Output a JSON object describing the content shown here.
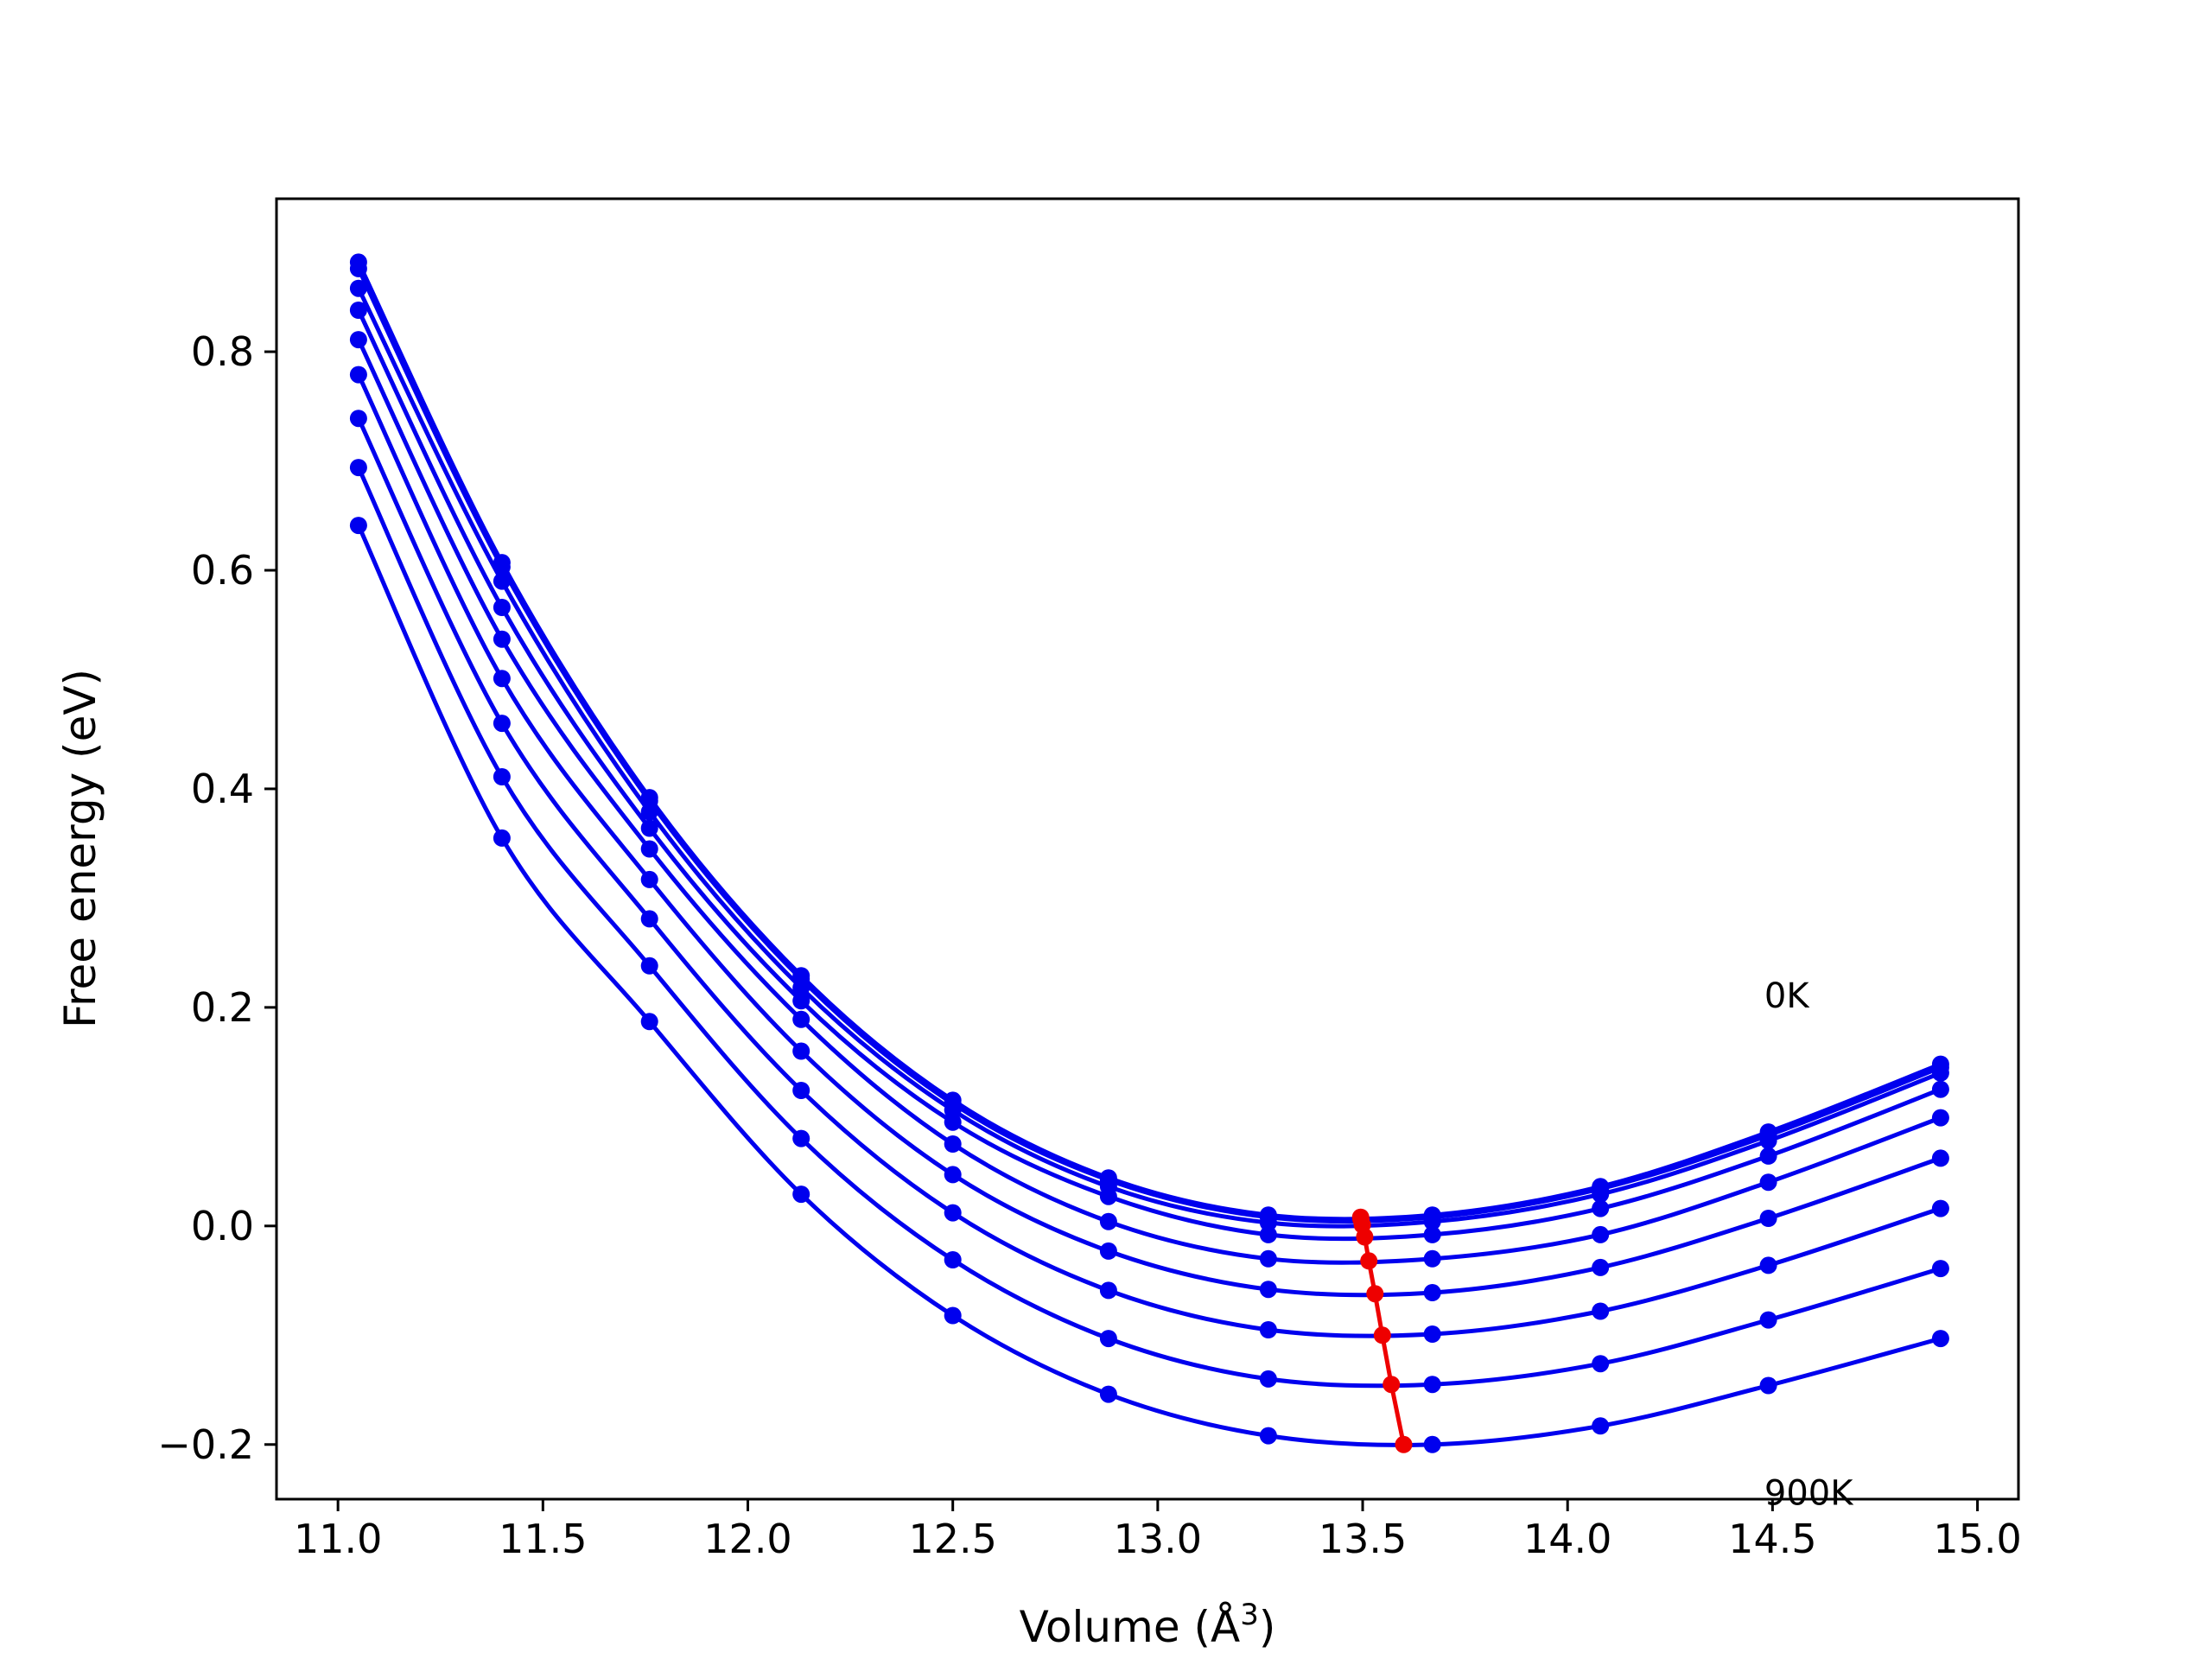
{
  "chart_data": {
    "type": "line",
    "title": "",
    "xlabel": "Volume (Å",
    "xlabel_sup": "3",
    "xlabel_close": ")",
    "ylabel": "Free energy (eV)",
    "xlim": [
      10.85,
      15.1
    ],
    "ylim": [
      -0.25,
      0.94
    ],
    "xticks": [
      11.0,
      11.5,
      12.0,
      12.5,
      13.0,
      13.5,
      14.0,
      14.5,
      15.0
    ],
    "xtick_labels": [
      "11.0",
      "11.5",
      "12.0",
      "12.5",
      "13.0",
      "13.5",
      "14.0",
      "14.5",
      "15.0"
    ],
    "yticks": [
      -0.2,
      0.0,
      0.2,
      0.4,
      0.6,
      0.8
    ],
    "ytick_labels": [
      "−0.2",
      "0.0",
      "0.2",
      "0.4",
      "0.6",
      "0.8"
    ],
    "grid": false,
    "curve_color": "#0000ee",
    "min_color": "#ee0000",
    "annotations": [
      {
        "text": "0K",
        "x": 14.48,
        "y": 0.2
      },
      {
        "text": "900K",
        "x": 14.48,
        "y": -0.255
      }
    ],
    "x": [
      11.05,
      11.4,
      11.76,
      12.13,
      12.5,
      12.88,
      13.27,
      13.67,
      14.08,
      14.49,
      14.91
    ],
    "series": [
      {
        "values": [
          0.882,
          0.607,
          0.392,
          0.229,
          0.115,
          0.044,
          0.01,
          0.01,
          0.036,
          0.086,
          0.148
        ]
      },
      {
        "values": [
          0.876,
          0.603,
          0.389,
          0.226,
          0.112,
          0.042,
          0.008,
          0.008,
          0.034,
          0.083,
          0.145
        ]
      },
      {
        "values": [
          0.858,
          0.59,
          0.379,
          0.218,
          0.106,
          0.036,
          0.003,
          0.004,
          0.029,
          0.078,
          0.14
        ]
      },
      {
        "values": [
          0.838,
          0.566,
          0.364,
          0.206,
          0.095,
          0.027,
          -0.008,
          -0.008,
          0.016,
          0.064,
          0.125
        ]
      },
      {
        "values": [
          0.811,
          0.537,
          0.345,
          0.189,
          0.075,
          0.004,
          -0.03,
          -0.03,
          -0.008,
          0.04,
          0.099
        ]
      },
      {
        "values": [
          0.779,
          0.501,
          0.317,
          0.16,
          0.047,
          -0.023,
          -0.058,
          -0.061,
          -0.038,
          0.007,
          0.062
        ]
      },
      {
        "values": [
          0.739,
          0.46,
          0.281,
          0.124,
          0.012,
          -0.059,
          -0.095,
          -0.099,
          -0.078,
          -0.036,
          0.016
        ]
      },
      {
        "values": [
          0.694,
          0.411,
          0.238,
          0.08,
          -0.031,
          -0.103,
          -0.14,
          -0.145,
          -0.126,
          -0.086,
          -0.039
        ]
      },
      {
        "values": [
          0.641,
          0.355,
          0.187,
          0.029,
          -0.082,
          -0.154,
          -0.192,
          -0.2,
          -0.183,
          -0.146,
          -0.103
        ]
      }
    ],
    "minima": {
      "x": [
        13.495,
        13.496,
        13.499,
        13.505,
        13.515,
        13.53,
        13.548,
        13.57,
        13.6
      ],
      "y": [
        0.008,
        0.006,
        0.001,
        -0.01,
        -0.032,
        -0.062,
        -0.1,
        -0.145,
        -0.2
      ]
    }
  }
}
